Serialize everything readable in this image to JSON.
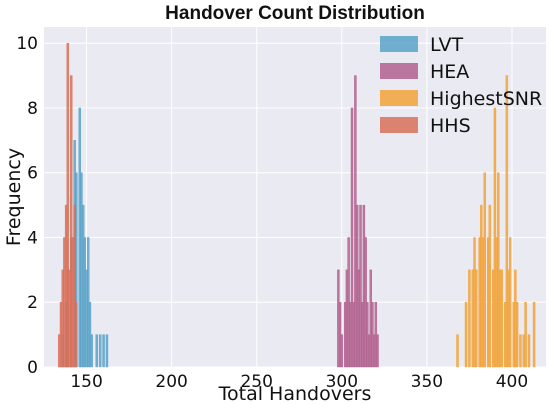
{
  "chart_data": {
    "type": "bar",
    "title": "Handover Count Distribution",
    "xlabel": "Total Handovers",
    "ylabel": "Frequency",
    "xlim": [
      125,
      420
    ],
    "ylim": [
      0,
      10.5
    ],
    "x_ticks": [
      150,
      200,
      250,
      300,
      350,
      400
    ],
    "y_ticks": [
      0,
      2,
      4,
      6,
      8,
      10
    ],
    "grid": true,
    "legend_position": "top-right",
    "bin_width": 1.2,
    "series": [
      {
        "name": "LVT",
        "color": "#5ba3c9",
        "bins": [
          {
            "x": 136,
            "y": 1
          },
          {
            "x": 138,
            "y": 2
          },
          {
            "x": 139,
            "y": 3
          },
          {
            "x": 141,
            "y": 4
          },
          {
            "x": 143,
            "y": 7
          },
          {
            "x": 144,
            "y": 6
          },
          {
            "x": 146,
            "y": 8
          },
          {
            "x": 147,
            "y": 6
          },
          {
            "x": 148,
            "y": 5
          },
          {
            "x": 149,
            "y": 4
          },
          {
            "x": 150,
            "y": 3
          },
          {
            "x": 151,
            "y": 4
          },
          {
            "x": 152,
            "y": 2
          },
          {
            "x": 153,
            "y": 1
          },
          {
            "x": 156,
            "y": 1
          },
          {
            "x": 158,
            "y": 1
          },
          {
            "x": 160,
            "y": 1
          },
          {
            "x": 162,
            "y": 1
          }
        ]
      },
      {
        "name": "HEA",
        "color": "#b2628f",
        "bins": [
          {
            "x": 298,
            "y": 3
          },
          {
            "x": 299,
            "y": 2
          },
          {
            "x": 300,
            "y": 1
          },
          {
            "x": 302,
            "y": 2
          },
          {
            "x": 303,
            "y": 3
          },
          {
            "x": 304,
            "y": 4
          },
          {
            "x": 305,
            "y": 2
          },
          {
            "x": 306,
            "y": 8
          },
          {
            "x": 307,
            "y": 2
          },
          {
            "x": 308,
            "y": 9
          },
          {
            "x": 309,
            "y": 5
          },
          {
            "x": 310,
            "y": 3
          },
          {
            "x": 311,
            "y": 5
          },
          {
            "x": 312,
            "y": 2
          },
          {
            "x": 313,
            "y": 5
          },
          {
            "x": 314,
            "y": 4
          },
          {
            "x": 315,
            "y": 2
          },
          {
            "x": 316,
            "y": 1
          },
          {
            "x": 317,
            "y": 3
          },
          {
            "x": 318,
            "y": 2
          },
          {
            "x": 319,
            "y": 1
          },
          {
            "x": 320,
            "y": 2
          },
          {
            "x": 321,
            "y": 1
          }
        ]
      },
      {
        "name": "HighestSNR",
        "color": "#f2a33a",
        "bins": [
          {
            "x": 368,
            "y": 1
          },
          {
            "x": 373,
            "y": 2
          },
          {
            "x": 375,
            "y": 3
          },
          {
            "x": 377,
            "y": 3
          },
          {
            "x": 378,
            "y": 4
          },
          {
            "x": 379,
            "y": 3
          },
          {
            "x": 381,
            "y": 4
          },
          {
            "x": 382,
            "y": 5
          },
          {
            "x": 383,
            "y": 4
          },
          {
            "x": 384,
            "y": 6
          },
          {
            "x": 386,
            "y": 4
          },
          {
            "x": 387,
            "y": 5
          },
          {
            "x": 389,
            "y": 3
          },
          {
            "x": 390,
            "y": 8
          },
          {
            "x": 391,
            "y": 4
          },
          {
            "x": 392,
            "y": 6
          },
          {
            "x": 393,
            "y": 3
          },
          {
            "x": 394,
            "y": 3
          },
          {
            "x": 396,
            "y": 2
          },
          {
            "x": 397,
            "y": 9
          },
          {
            "x": 398,
            "y": 3
          },
          {
            "x": 399,
            "y": 4
          },
          {
            "x": 401,
            "y": 2
          },
          {
            "x": 402,
            "y": 3
          },
          {
            "x": 403,
            "y": 2
          },
          {
            "x": 405,
            "y": 1
          },
          {
            "x": 407,
            "y": 1
          },
          {
            "x": 408,
            "y": 2
          },
          {
            "x": 410,
            "y": 1
          },
          {
            "x": 413,
            "y": 2
          }
        ]
      },
      {
        "name": "HHS",
        "color": "#d9705a",
        "bins": [
          {
            "x": 134,
            "y": 1
          },
          {
            "x": 135,
            "y": 2
          },
          {
            "x": 136,
            "y": 3
          },
          {
            "x": 137,
            "y": 4
          },
          {
            "x": 138,
            "y": 5
          },
          {
            "x": 139,
            "y": 10
          },
          {
            "x": 140,
            "y": 3
          },
          {
            "x": 141,
            "y": 9
          },
          {
            "x": 142,
            "y": 4
          },
          {
            "x": 143,
            "y": 5
          },
          {
            "x": 144,
            "y": 2
          }
        ]
      }
    ]
  }
}
